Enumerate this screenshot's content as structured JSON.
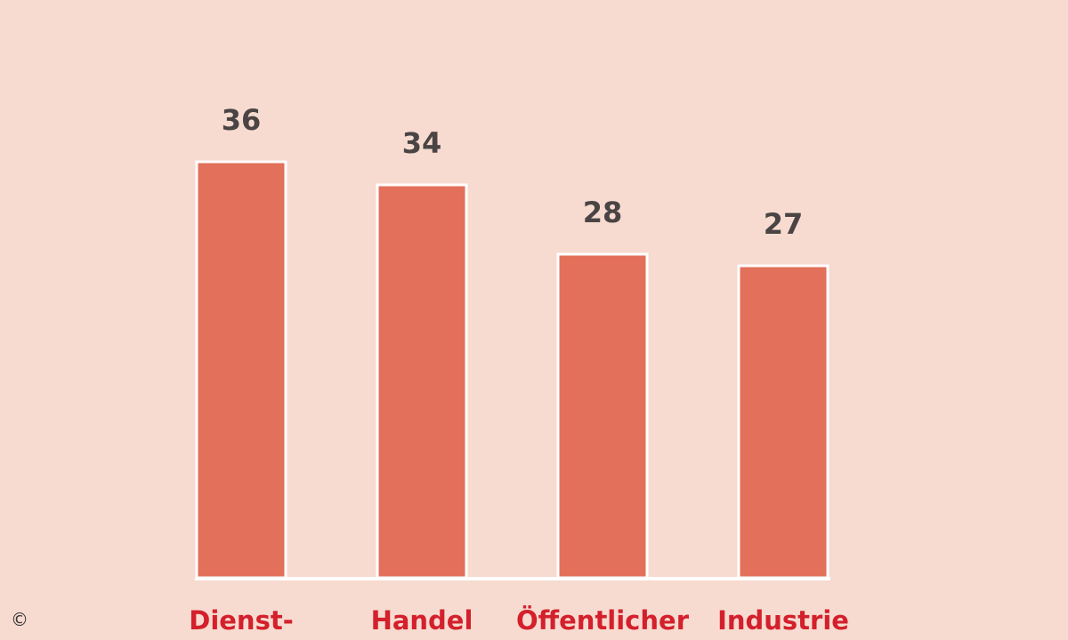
{
  "chart_data": {
    "type": "bar",
    "categories": [
      "Dienst-",
      "Handel",
      "Öffentlicher",
      "Industrie"
    ],
    "values": [
      36,
      34,
      28,
      27
    ],
    "color": "#e2705a",
    "copyright": "©"
  }
}
